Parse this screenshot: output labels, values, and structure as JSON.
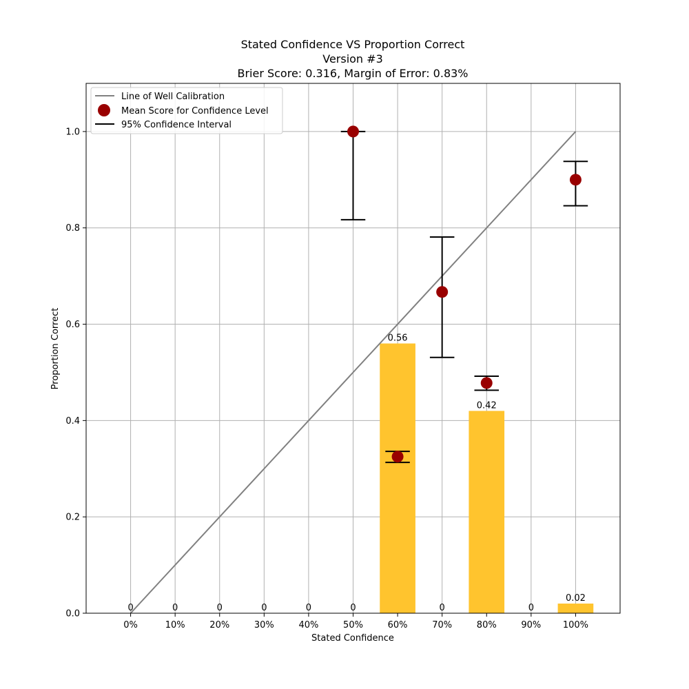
{
  "chart_data": {
    "type": "bar",
    "title_lines": [
      "Stated Confidence VS Proportion Correct",
      "Version #3",
      "Brier Score: 0.316, Margin of Error: 0.83%"
    ],
    "xlabel": "Stated Confidence",
    "ylabel": "Proportion Correct",
    "ylim": [
      0,
      1.1
    ],
    "y_ticks": [
      0.0,
      0.2,
      0.4,
      0.6,
      0.8,
      1.0
    ],
    "y_tick_labels": [
      "0.0",
      "0.2",
      "0.4",
      "0.6",
      "0.8",
      "1.0"
    ],
    "categories": [
      "0%",
      "10%",
      "20%",
      "30%",
      "40%",
      "50%",
      "60%",
      "70%",
      "80%",
      "90%",
      "100%"
    ],
    "x_values": [
      0,
      0.1,
      0.2,
      0.3,
      0.4,
      0.5,
      0.6,
      0.7,
      0.8,
      0.9,
      1.0
    ],
    "bar_values": [
      0,
      0,
      0,
      0,
      0,
      0,
      0.56,
      0,
      0.42,
      0,
      0.02
    ],
    "bar_labels": [
      "0",
      "0",
      "0",
      "0",
      "0",
      "0",
      "0.56",
      "0",
      "0.42",
      "0",
      "0.02"
    ],
    "calibration_line": {
      "name": "Line of Well Calibration",
      "x": [
        0,
        1.0
      ],
      "y": [
        0,
        1.0
      ]
    },
    "mean_scores": {
      "name": "Mean Score for Confidence Level",
      "points": [
        {
          "x": 0.5,
          "y": 1.0,
          "ci_low": 0.817,
          "ci_high": 1.0
        },
        {
          "x": 0.6,
          "y": 0.325,
          "ci_low": 0.313,
          "ci_high": 0.336
        },
        {
          "x": 0.7,
          "y": 0.667,
          "ci_low": 0.531,
          "ci_high": 0.781
        },
        {
          "x": 0.8,
          "y": 0.478,
          "ci_low": 0.463,
          "ci_high": 0.492
        },
        {
          "x": 1.0,
          "y": 0.9,
          "ci_low": 0.846,
          "ci_high": 0.938
        }
      ]
    },
    "ci_name": "95% Confidence Interval",
    "grid": true,
    "legend": "top-left",
    "colors": {
      "bar": "#FFC42E",
      "line": "#808080",
      "point": "#990000",
      "errorbar": "#000000",
      "grid": "#b0b0b0"
    }
  }
}
